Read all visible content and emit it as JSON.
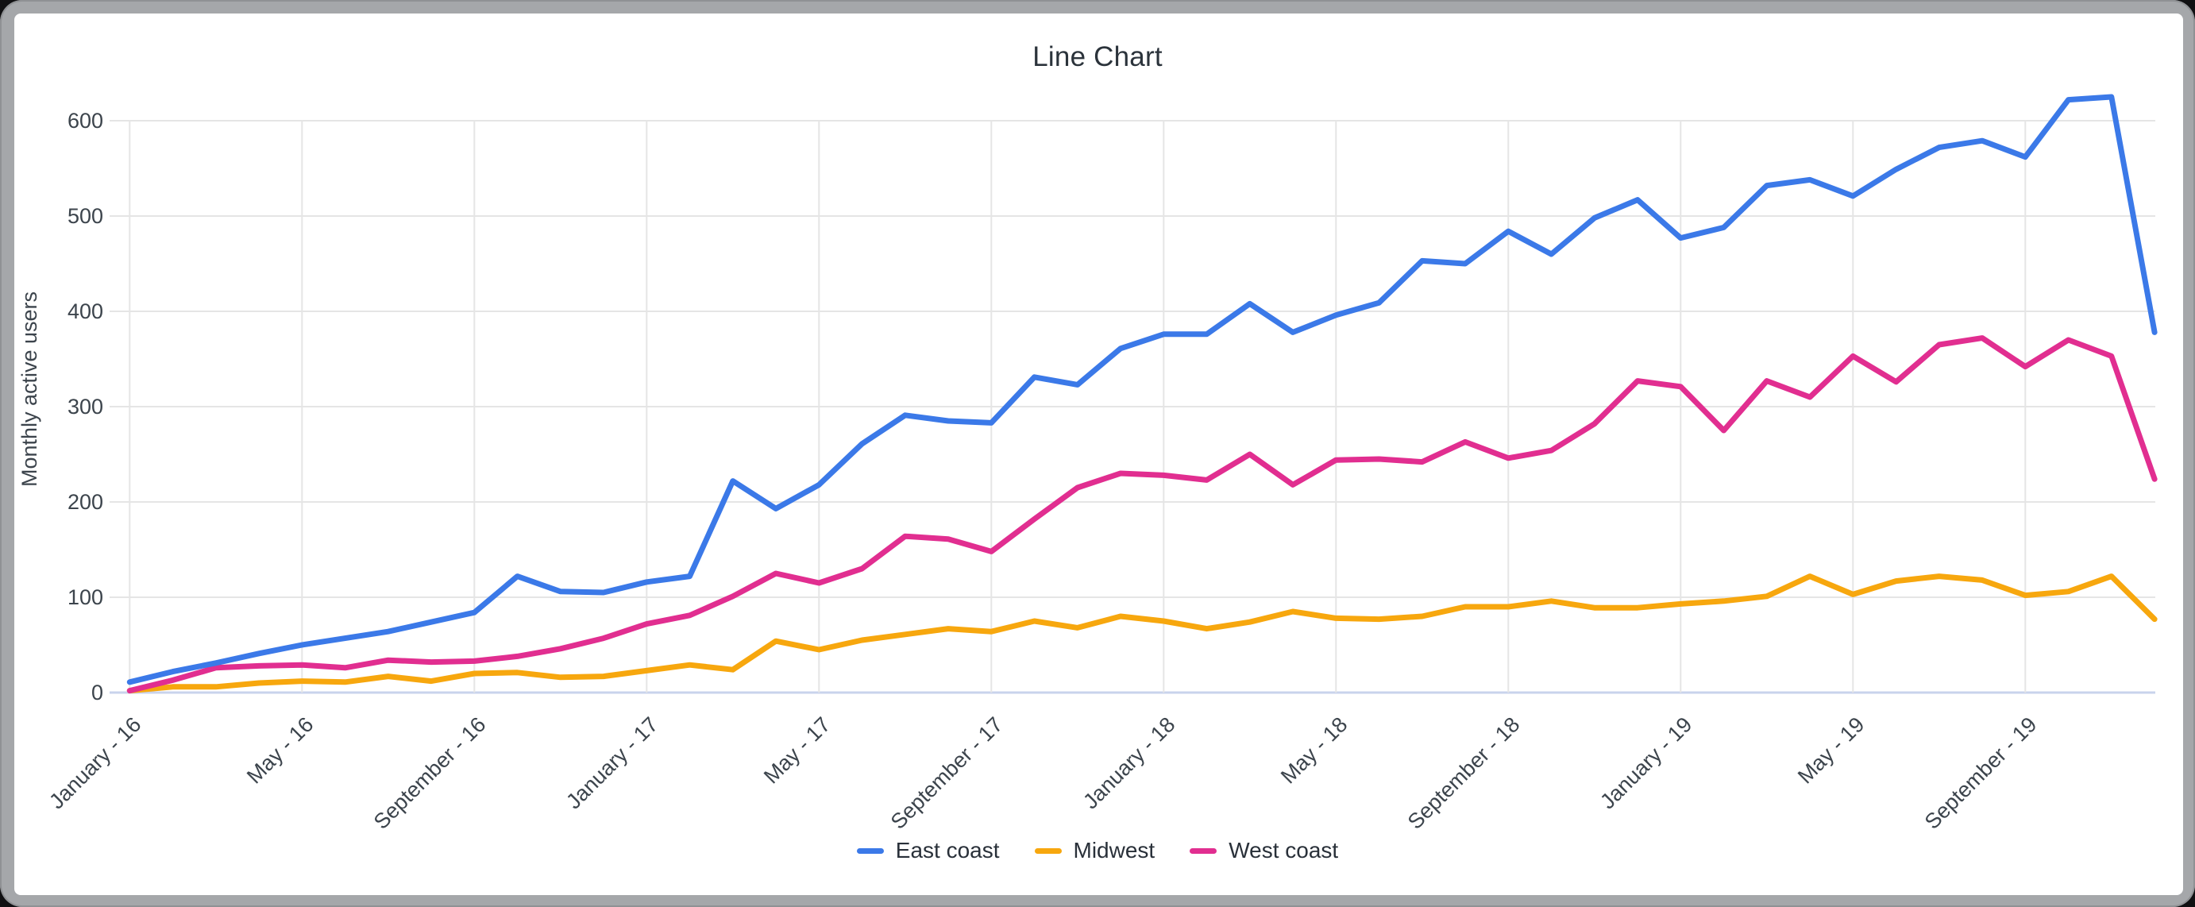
{
  "window": {
    "frame_color": "#a5a7aa",
    "background": "#ffffff"
  },
  "chart_data": {
    "type": "line",
    "title": "Line Chart",
    "xlabel": "",
    "ylabel": "Monthly active users",
    "ylim": [
      0,
      650
    ],
    "yticks": [
      0,
      100,
      200,
      300,
      400,
      500,
      600
    ],
    "grid": true,
    "legend_position": "bottom",
    "n_points": 48,
    "x_start": "January - 16",
    "x_tick_month_indices": [
      0,
      4,
      8,
      12,
      16,
      20,
      24,
      28,
      32,
      36,
      40,
      44
    ],
    "xticks": [
      {
        "month_index": 0,
        "label": "January - 16"
      },
      {
        "month_index": 4,
        "label": "May - 16"
      },
      {
        "month_index": 8,
        "label": "September - 16"
      },
      {
        "month_index": 12,
        "label": "January - 17"
      },
      {
        "month_index": 16,
        "label": "May - 17"
      },
      {
        "month_index": 20,
        "label": "September - 17"
      },
      {
        "month_index": 24,
        "label": "January - 18"
      },
      {
        "month_index": 28,
        "label": "May - 18"
      },
      {
        "month_index": 32,
        "label": "September - 18"
      },
      {
        "month_index": 36,
        "label": "January - 19"
      },
      {
        "month_index": 40,
        "label": "May - 19"
      },
      {
        "month_index": 44,
        "label": "September - 19"
      }
    ],
    "series": [
      {
        "name": "East coast",
        "color": "#3b79e8",
        "values": [
          11,
          22,
          31,
          41,
          50,
          57,
          64,
          74,
          84,
          122,
          106,
          105,
          116,
          122,
          222,
          193,
          218,
          261,
          291,
          285,
          283,
          331,
          323,
          361,
          376,
          376,
          408,
          378,
          396,
          409,
          453,
          450,
          484,
          460,
          498,
          517,
          477,
          488,
          532,
          538,
          521,
          549,
          572,
          579,
          562,
          622,
          625,
          378
        ]
      },
      {
        "name": "Midwest",
        "color": "#f7a70e",
        "values": [
          2,
          6,
          6,
          10,
          12,
          11,
          17,
          12,
          20,
          21,
          16,
          17,
          23,
          29,
          24,
          54,
          45,
          55,
          61,
          67,
          64,
          75,
          68,
          80,
          75,
          67,
          74,
          85,
          78,
          77,
          80,
          90,
          90,
          96,
          89,
          89,
          93,
          96,
          101,
          122,
          103,
          117,
          122,
          118,
          102,
          106,
          122,
          77
        ]
      },
      {
        "name": "West coast",
        "color": "#e12e90",
        "values": [
          2,
          13,
          26,
          28,
          29,
          26,
          34,
          32,
          33,
          38,
          46,
          57,
          72,
          81,
          101,
          125,
          115,
          130,
          164,
          161,
          148,
          182,
          215,
          230,
          228,
          223,
          250,
          218,
          244,
          245,
          242,
          263,
          246,
          254,
          282,
          327,
          321,
          275,
          327,
          310,
          353,
          326,
          365,
          372,
          342,
          370,
          353,
          224
        ]
      }
    ],
    "colors": {
      "gridline": "#e5e5e5",
      "baseline": "#c9d3ec",
      "tick_text": "#3c444c",
      "title_text": "#2b333b"
    }
  }
}
